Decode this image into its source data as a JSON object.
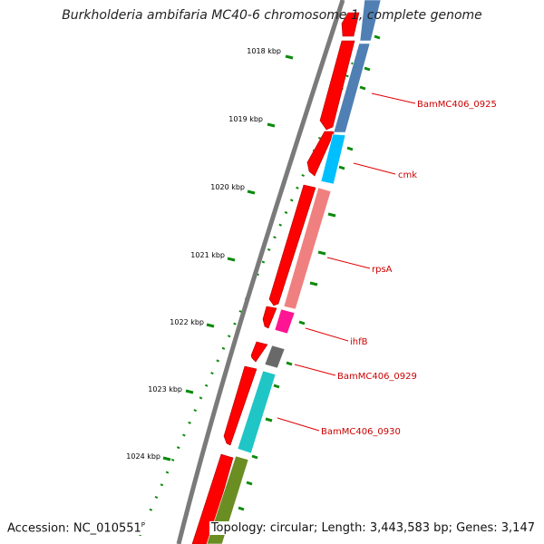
{
  "title": "Burkholderia ambifaria MC40-6 chromosome 1, complete genome",
  "footer": {
    "accession_label": "Accession:",
    "accession": "NC_010551",
    "accession_sup": "P",
    "topology_label": "Topology:",
    "topology": "circular",
    "length_label": "Length:",
    "length": "3,443,583 bp",
    "genes_label": "Genes:",
    "genes": "3,147"
  },
  "scale_labels": [
    "1018 kbp",
    "1019 kbp",
    "1020 kbp",
    "1021 kbp",
    "1022 kbp",
    "1023 kbp",
    "1024 kbp"
  ],
  "gene_labels": [
    "BamMC406_0925",
    "cmk",
    "rpsA",
    "ihfB",
    "BamMC406_0929",
    "BamMC406_0930"
  ],
  "colors": {
    "backbone": "#808080",
    "cds": "#ff0000",
    "steel_blue": "#4f7fb3",
    "deep_sky_blue": "#00bfff",
    "light_coral": "#f08080",
    "magenta": "#ff1493",
    "dim_gray": "#696969",
    "turquoise": "#20c5c5",
    "olive": "#6b8e23",
    "tick_green": "#007a00",
    "label_red": "#cc0000"
  }
}
